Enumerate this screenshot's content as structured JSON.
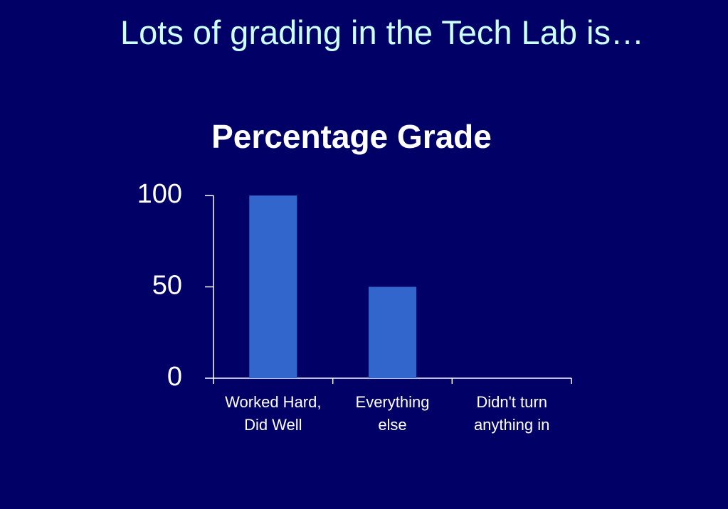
{
  "slide_title": "Lots of grading in the Tech Lab is…",
  "chart_data": {
    "type": "bar",
    "title": "Percentage Grade",
    "categories": [
      "Worked Hard, Did Well",
      "Everything else",
      "Didn't turn anything in"
    ],
    "values": [
      100,
      50,
      0
    ],
    "color": "#3366cc",
    "ylim": [
      0,
      100
    ],
    "yticks": [
      0,
      50,
      100
    ],
    "grid": false
  }
}
